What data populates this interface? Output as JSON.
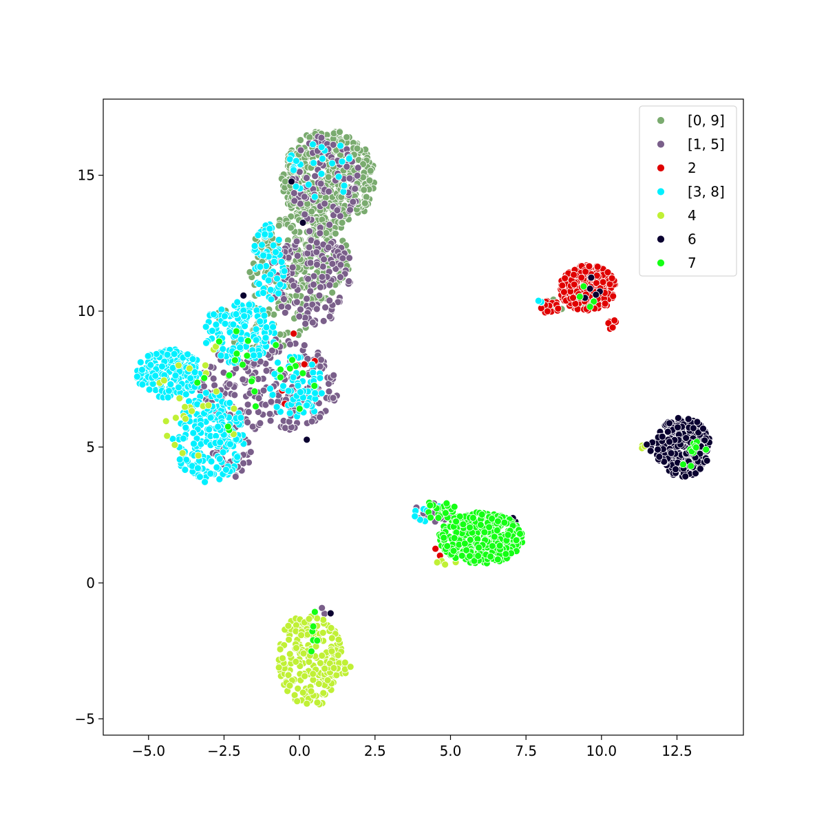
{
  "chart_data": {
    "type": "scatter",
    "title": "",
    "xlabel": "",
    "ylabel": "",
    "xlim": [
      -6.5,
      14.7
    ],
    "ylim": [
      -5.6,
      17.8
    ],
    "xticks": [
      {
        "value": -5.0,
        "label": "−5.0"
      },
      {
        "value": -2.5,
        "label": "−2.5"
      },
      {
        "value": 0.0,
        "label": "0.0"
      },
      {
        "value": 2.5,
        "label": "2.5"
      },
      {
        "value": 5.0,
        "label": "5.0"
      },
      {
        "value": 7.5,
        "label": "7.5"
      },
      {
        "value": 10.0,
        "label": "10.0"
      },
      {
        "value": 12.5,
        "label": "12.5"
      }
    ],
    "yticks": [
      {
        "value": -5,
        "label": "−5"
      },
      {
        "value": 0,
        "label": "0"
      },
      {
        "value": 5,
        "label": "5"
      },
      {
        "value": 10,
        "label": "10"
      },
      {
        "value": 15,
        "label": "15"
      }
    ],
    "grid": false,
    "legend_position": "top-right",
    "marker_edge_color": "#ffffff",
    "series": [
      {
        "name": "[0, 9]",
        "color": "#7aab6f",
        "clusters": [
          {
            "x": [
              -0.6,
              2.5
            ],
            "y": [
              13.0,
              16.7
            ],
            "n": 520
          },
          {
            "x": [
              -1.8,
              1.7
            ],
            "y": [
              10.2,
              13.5
            ],
            "n": 260
          },
          {
            "x": [
              -2.8,
              0.3
            ],
            "y": [
              8.6,
              10.6
            ],
            "n": 60
          },
          {
            "x": [
              8.0,
              9.5
            ],
            "y": [
              10.0,
              10.6
            ],
            "n": 10
          }
        ]
      },
      {
        "name": "[1, 5]",
        "color": "#7a5f8a",
        "clusters": [
          {
            "x": [
              -0.3,
              2.0
            ],
            "y": [
              13.0,
              16.5
            ],
            "n": 90
          },
          {
            "x": [
              -1.0,
              1.8
            ],
            "y": [
              9.5,
              13.0
            ],
            "n": 140
          },
          {
            "x": [
              -3.3,
              1.3
            ],
            "y": [
              5.5,
              9.0
            ],
            "n": 230
          },
          {
            "x": [
              -3.0,
              -1.5
            ],
            "y": [
              3.8,
              5.5
            ],
            "n": 40
          },
          {
            "x": [
              3.8,
              5.0
            ],
            "y": [
              2.2,
              3.0
            ],
            "n": 20
          },
          {
            "x": [
              0.5,
              1.0
            ],
            "y": [
              -1.5,
              -0.7
            ],
            "n": 4
          }
        ]
      },
      {
        "name": "2",
        "color": "#e00000",
        "clusters": [
          {
            "x": [
              8.6,
              10.5
            ],
            "y": [
              10.0,
              11.7
            ],
            "n": 260
          },
          {
            "x": [
              8.0,
              8.6
            ],
            "y": [
              9.9,
              10.4
            ],
            "n": 15
          },
          {
            "x": [
              10.2,
              10.5
            ],
            "y": [
              9.3,
              9.9
            ],
            "n": 6
          },
          {
            "x": [
              -0.8,
              0.8
            ],
            "y": [
              5.8,
              9.3
            ],
            "n": 6
          },
          {
            "x": [
              4.4,
              4.8
            ],
            "y": [
              0.9,
              1.3
            ],
            "n": 3
          }
        ]
      },
      {
        "name": "[3, 8]",
        "color": "#00f0ff",
        "clusters": [
          {
            "x": [
              -5.4,
              -3.2
            ],
            "y": [
              6.8,
              8.6
            ],
            "n": 190
          },
          {
            "x": [
              -4.2,
              -1.8
            ],
            "y": [
              3.7,
              7.0
            ],
            "n": 220
          },
          {
            "x": [
              -3.2,
              -0.8
            ],
            "y": [
              8.0,
              10.4
            ],
            "n": 140
          },
          {
            "x": [
              -1.6,
              -0.4
            ],
            "y": [
              10.3,
              13.2
            ],
            "n": 60
          },
          {
            "x": [
              -1.0,
              0.8
            ],
            "y": [
              6.0,
              8.5
            ],
            "n": 60
          },
          {
            "x": [
              -0.4,
              1.8
            ],
            "y": [
              14.0,
              16.5
            ],
            "n": 25
          },
          {
            "x": [
              3.8,
              4.8
            ],
            "y": [
              2.2,
              2.9
            ],
            "n": 8
          },
          {
            "x": [
              7.7,
              8.1
            ],
            "y": [
              10.2,
              10.4
            ],
            "n": 3
          }
        ]
      },
      {
        "name": "4",
        "color": "#c0f035",
        "clusters": [
          {
            "x": [
              -0.7,
              1.4
            ],
            "y": [
              -4.6,
              -1.0
            ],
            "n": 200
          },
          {
            "x": [
              0.8,
              1.7
            ],
            "y": [
              -3.4,
              -2.8
            ],
            "n": 20
          },
          {
            "x": [
              -4.8,
              -1.8
            ],
            "y": [
              4.5,
              9.2
            ],
            "n": 25
          },
          {
            "x": [
              4.2,
              5.4
            ],
            "y": [
              0.5,
              1.2
            ],
            "n": 6
          },
          {
            "x": [
              11.3,
              11.6
            ],
            "y": [
              4.9,
              5.1
            ],
            "n": 3
          }
        ]
      },
      {
        "name": "6",
        "color": "#0a0030",
        "clusters": [
          {
            "x": [
              11.8,
              13.6
            ],
            "y": [
              3.9,
              6.1
            ],
            "n": 260
          },
          {
            "x": [
              11.4,
              12.0
            ],
            "y": [
              4.8,
              5.2
            ],
            "n": 6
          },
          {
            "x": [
              9.2,
              10.0
            ],
            "y": [
              10.2,
              11.4
            ],
            "n": 5
          },
          {
            "x": [
              -2.5,
              2.1
            ],
            "y": [
              4.6,
              15.1
            ],
            "n": 4
          },
          {
            "x": [
              6.9,
              7.2
            ],
            "y": [
              2.2,
              2.4
            ],
            "n": 2
          },
          {
            "x": [
              1.0,
              1.2
            ],
            "y": [
              -1.2,
              -1.0
            ],
            "n": 1
          }
        ]
      },
      {
        "name": "7",
        "color": "#14ff14",
        "clusters": [
          {
            "x": [
              4.6,
              7.4
            ],
            "y": [
              0.7,
              2.6
            ],
            "n": 340
          },
          {
            "x": [
              4.0,
              5.2
            ],
            "y": [
              2.3,
              3.0
            ],
            "n": 20
          },
          {
            "x": [
              -3.5,
              1.0
            ],
            "y": [
              5.0,
              9.5
            ],
            "n": 25
          },
          {
            "x": [
              0.3,
              0.7
            ],
            "y": [
              -3.0,
              -0.7
            ],
            "n": 6
          },
          {
            "x": [
              12.5,
              13.6
            ],
            "y": [
              4.2,
              5.2
            ],
            "n": 10
          },
          {
            "x": [
              9.0,
              9.8
            ],
            "y": [
              10.0,
              11.0
            ],
            "n": 4
          }
        ]
      }
    ]
  }
}
